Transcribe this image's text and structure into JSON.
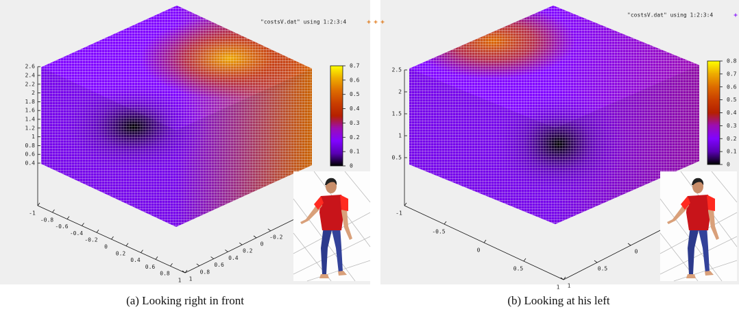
{
  "chart_data": [
    {
      "type": "scatter3d",
      "legend": "\"costsV.dat\" using 1:2:3:4",
      "caption": "(a) Looking right in front",
      "xlim": [
        -1,
        1
      ],
      "ylim": [
        -1,
        1
      ],
      "zlim": [
        0.4,
        2.6
      ],
      "xticks": [
        -1,
        -0.8,
        -0.6,
        -0.4,
        -0.2,
        0,
        0.2,
        0.4,
        0.6,
        0.8,
        1
      ],
      "yticks": [
        1,
        0.8,
        0.6,
        0.4,
        0.2,
        0,
        -0.2
      ],
      "zticks": [
        0.4,
        0.6,
        0.8,
        1,
        1.2,
        1.4,
        1.6,
        1.8,
        2,
        2.2,
        2.4,
        2.6
      ],
      "cblim": [
        0,
        0.7
      ],
      "cbticks": [
        0,
        0.1,
        0.2,
        0.3,
        0.4,
        0.5,
        0.6,
        0.7
      ],
      "palette": [
        "#000000",
        "#5900b4",
        "#8004ff",
        "#9c0db4",
        "#b52000",
        "#c93e00",
        "#dd6b00",
        "#eeab00",
        "#ffff00"
      ]
    },
    {
      "type": "scatter3d",
      "legend": "\"costsV.dat\" using 1:2:3:4",
      "caption": "(b) Looking at his left",
      "xlim": [
        -1,
        1
      ],
      "ylim": [
        -1,
        1
      ],
      "zlim": [
        0.5,
        2.5
      ],
      "xticks": [
        -1,
        -0.5,
        0,
        0.5,
        1
      ],
      "yticks": [
        1,
        0.5,
        0
      ],
      "zticks": [
        0.5,
        1,
        1.5,
        2,
        2.5
      ],
      "cblim": [
        0,
        0.8
      ],
      "cbticks": [
        0,
        0.1,
        0.2,
        0.3,
        0.4,
        0.5,
        0.6,
        0.7,
        0.8
      ],
      "palette": [
        "#000000",
        "#5900b4",
        "#8004ff",
        "#9c0db4",
        "#b52000",
        "#c93e00",
        "#dd6b00",
        "#eeab00",
        "#ffff00"
      ]
    }
  ]
}
